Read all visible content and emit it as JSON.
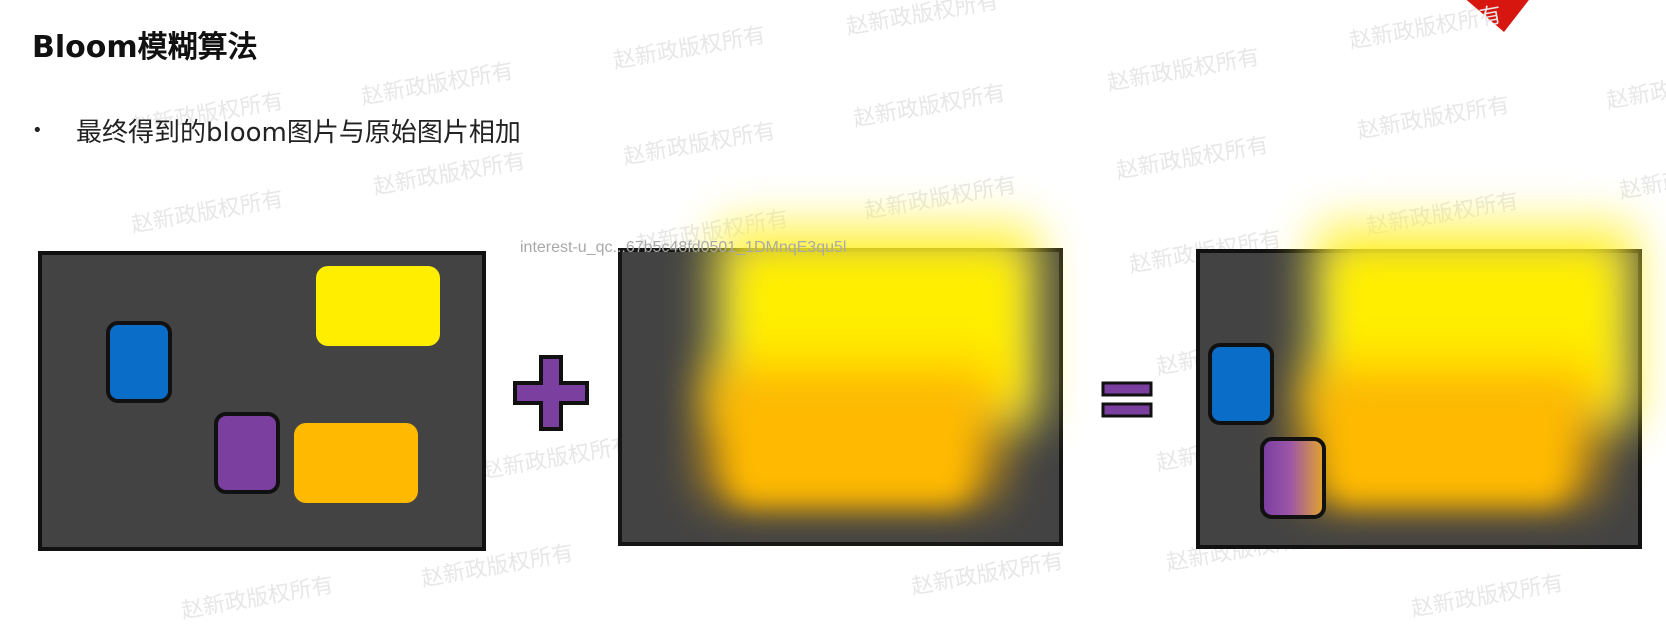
{
  "slide": {
    "title": "Bloom模糊算法",
    "bullet_marker": "•",
    "bullet": "最终得到的bloom图片与原始图片相加",
    "watermark": "赵新政版权所有",
    "overlay_id": "interest-u_qc...67b5c48fd0501_1DMnqE3qu5l"
  },
  "diagram": {
    "operator_plus": "+",
    "operator_equals": "=",
    "colors": {
      "panel_bg": "#434343",
      "blue": "#0a6dc8",
      "purple": "#7b3fa0",
      "yellow": "#ffee00",
      "orange": "#ffba00",
      "accent_red": "#d7160f"
    },
    "panels": [
      "original-image",
      "bloom-image",
      "result-image"
    ]
  }
}
